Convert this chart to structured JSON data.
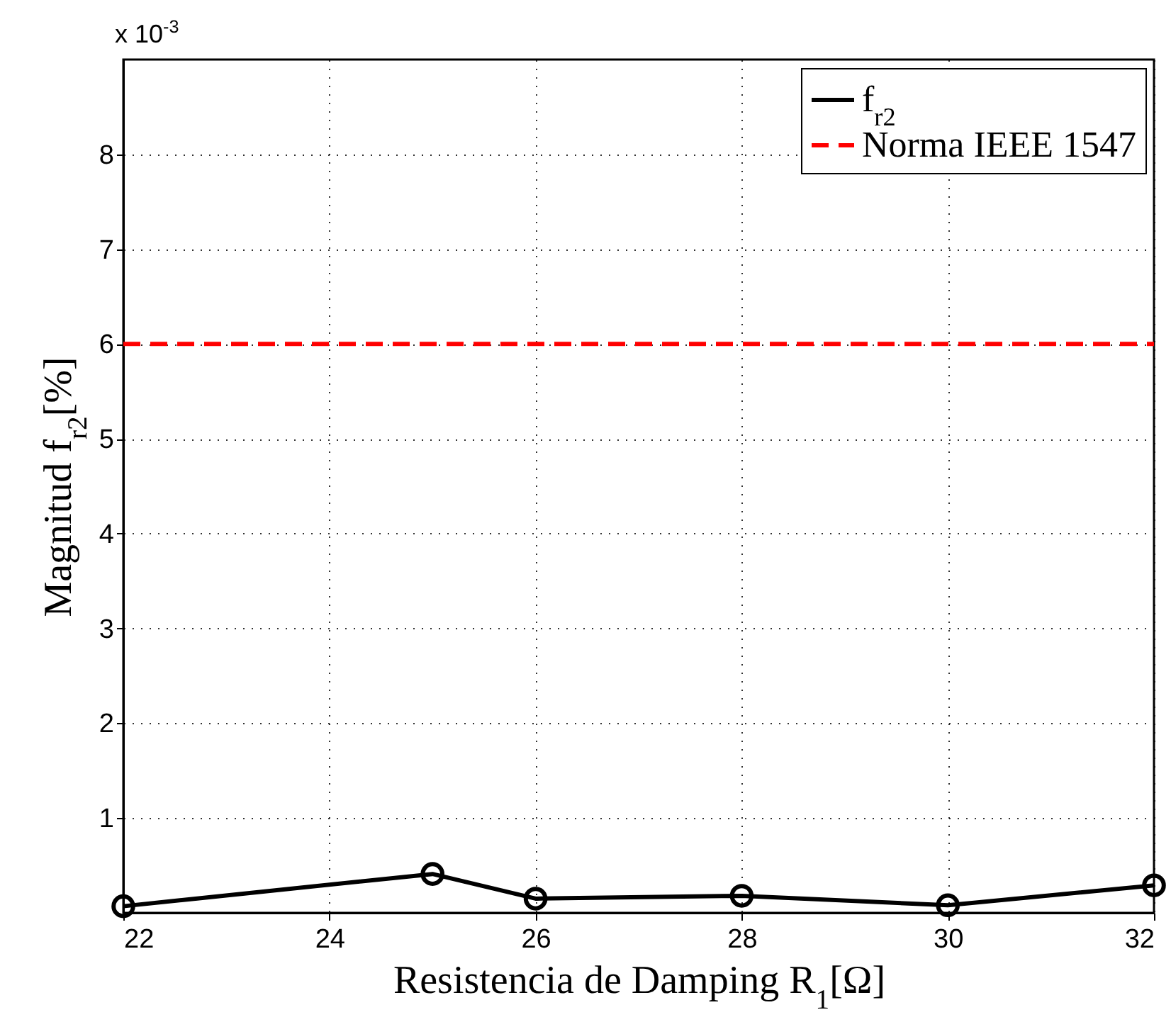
{
  "chart_data": {
    "type": "line",
    "xlabel": "Resistencia de Damping R$_{1}$[Ω]",
    "ylabel": "Magnitud f$_{r2}$[%]",
    "annotations": [
      "x 10$^{-3}$"
    ],
    "xlim": [
      22,
      32
    ],
    "xticks": [
      22,
      24,
      26,
      28,
      30,
      32
    ],
    "ylim": [
      0,
      9
    ],
    "yticks": [
      1,
      2,
      3,
      4,
      5,
      6,
      7,
      8
    ],
    "grid": true,
    "legend": "top right",
    "marker": "circle",
    "series": [
      {
        "name": "f$_{r2}$",
        "color": "#000000",
        "line_style": "solid",
        "x": [
          22,
          25,
          26,
          28,
          30,
          32
        ],
        "values": [
          0.07,
          0.41,
          0.15,
          0.18,
          0.08,
          0.29
        ]
      },
      {
        "name": "Norma IEEE 1547",
        "color": "#ff0000",
        "line_style": "dashed",
        "marker": "none",
        "x": [
          22,
          32
        ],
        "values": [
          6,
          6
        ]
      }
    ]
  }
}
